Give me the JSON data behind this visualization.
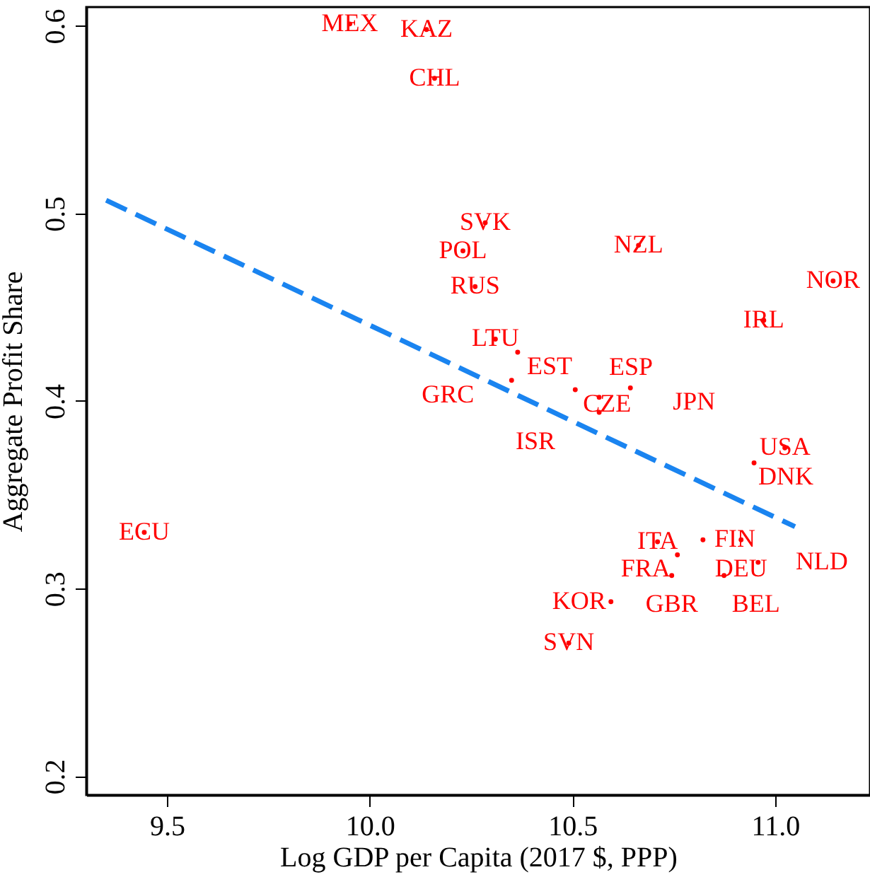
{
  "chart_data": {
    "type": "scatter",
    "xlabel": "Log GDP per Capita (2017 $, PPP)",
    "ylabel": "Aggregate Profit Share",
    "xlim": [
      9.301,
      11.234
    ],
    "ylim": [
      0.19,
      0.61
    ],
    "xticks": [
      9.5,
      {
        "value": 10,
        "label": "10.0"
      },
      10.5,
      {
        "value": 11,
        "label": "11.0"
      }
    ],
    "yticks": [
      0.2,
      0.3,
      0.4,
      0.5,
      0.6
    ],
    "grid": false,
    "series": [
      {
        "color": "#ff0000",
        "marker": "circle",
        "x": [
          9.951,
          10.14,
          10.16,
          10.285,
          10.23,
          10.26,
          10.663,
          11.143,
          10.972,
          10.31,
          10.365,
          10.35,
          10.507,
          10.566,
          10.643,
          10.566,
          11.024,
          10.948,
          9.444,
          10.71,
          10.822,
          10.916,
          10.759,
          10.958,
          10.745,
          10.874,
          10.595,
          10.491
        ],
        "values": [
          0.601,
          0.598,
          0.572,
          0.495,
          0.48,
          0.461,
          0.483,
          0.464,
          0.443,
          0.433,
          0.426,
          0.411,
          0.406,
          0.402,
          0.407,
          0.394,
          0.375,
          0.367,
          0.33,
          0.325,
          0.326,
          0.326,
          0.318,
          0.314,
          0.307,
          0.307,
          0.293,
          0.271
        ],
        "value_labels": [
          "MEX",
          "KAZ",
          "CHL",
          "SVK",
          "POL",
          "RUS",
          "NZL",
          "NOR",
          "IRL",
          "LTU",
          "EST",
          "GRC",
          "CZE",
          "ESP",
          "JPN",
          "ISR",
          "USA",
          "DNK",
          "ECU",
          "ITA",
          "FIN",
          "DEU",
          "FRA",
          "NLD",
          "GBR",
          "BEL",
          "KOR",
          "SVN"
        ]
      },
      {
        "type": "line",
        "color": "#1a84f0",
        "line_style": "dashed",
        "marker": "none",
        "x": [
          9.35,
          11.049
        ],
        "values": [
          0.507,
          0.333
        ]
      }
    ]
  }
}
